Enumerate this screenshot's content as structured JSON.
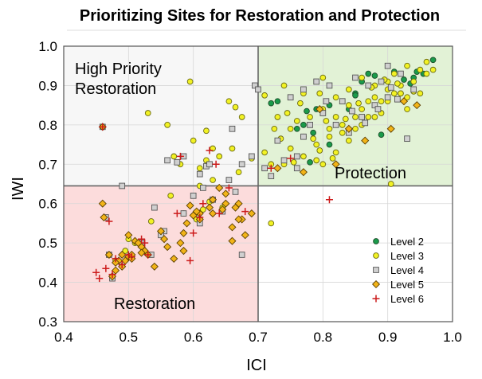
{
  "chart_data": {
    "type": "scatter",
    "title": "Prioritizing Sites for Restoration and Protection",
    "xlabel": "ICI",
    "ylabel": "IWI",
    "xlim": [
      0.4,
      1.0
    ],
    "ylim": [
      0.3,
      1.0
    ],
    "xticks": [
      "0.4",
      "0.5",
      "0.6",
      "0.7",
      "0.8",
      "0.9",
      "1.0"
    ],
    "yticks": [
      "0.3",
      "0.4",
      "0.5",
      "0.6",
      "0.7",
      "0.8",
      "0.9",
      "1.0"
    ],
    "grid": true,
    "legend_position": "bottom-right",
    "thresholds": {
      "x": 0.7,
      "y": 0.645
    },
    "regions": [
      {
        "label_lines": [
          "High Priority",
          "Restoration"
        ],
        "color": "#f7f7f7"
      },
      {
        "label_lines": [
          "Protection"
        ],
        "color": "#e2f2d6"
      },
      {
        "label_lines": [
          "Restoration"
        ],
        "color": "#fcdcdc"
      }
    ],
    "series": [
      {
        "name": "Level 2",
        "marker": "circle",
        "fill": "#1a9a4a",
        "stroke": "#1d4d2a",
        "points": [
          [
            0.97,
            0.965
          ],
          [
            0.955,
            0.93
          ],
          [
            0.94,
            0.92
          ],
          [
            0.935,
            0.905
          ],
          [
            0.925,
            0.915
          ],
          [
            0.945,
            0.935
          ],
          [
            0.91,
            0.935
          ],
          [
            0.88,
            0.925
          ],
          [
            0.87,
            0.93
          ],
          [
            0.86,
            0.91
          ],
          [
            0.85,
            0.88
          ],
          [
            0.81,
            0.85
          ],
          [
            0.79,
            0.84
          ],
          [
            0.775,
            0.835
          ],
          [
            0.77,
            0.8
          ],
          [
            0.76,
            0.79
          ],
          [
            0.785,
            0.78
          ],
          [
            0.73,
            0.86
          ],
          [
            0.72,
            0.855
          ],
          [
            0.81,
            0.75
          ],
          [
            0.78,
            0.705
          ],
          [
            0.85,
            0.875
          ],
          [
            0.84,
            0.84
          ],
          [
            0.89,
            0.775
          ]
        ]
      },
      {
        "name": "Level 3",
        "marker": "circle",
        "fill": "#f2f224",
        "stroke": "#6a6a12",
        "points": [
          [
            0.53,
            0.83
          ],
          [
            0.56,
            0.8
          ],
          [
            0.595,
            0.91
          ],
          [
            0.6,
            0.76
          ],
          [
            0.62,
            0.785
          ],
          [
            0.655,
            0.86
          ],
          [
            0.665,
            0.845
          ],
          [
            0.675,
            0.82
          ],
          [
            0.63,
            0.74
          ],
          [
            0.64,
            0.72
          ],
          [
            0.62,
            0.71
          ],
          [
            0.66,
            0.74
          ],
          [
            0.61,
            0.69
          ],
          [
            0.58,
            0.7
          ],
          [
            0.57,
            0.72
          ],
          [
            0.63,
            0.66
          ],
          [
            0.61,
            0.645
          ],
          [
            0.67,
            0.68
          ],
          [
            0.69,
            0.715
          ],
          [
            0.72,
            0.55
          ],
          [
            0.905,
            0.65
          ],
          [
            0.71,
            0.875
          ],
          [
            0.74,
            0.9
          ],
          [
            0.77,
            0.88
          ],
          [
            0.8,
            0.92
          ],
          [
            0.82,
            0.87
          ],
          [
            0.84,
            0.89
          ],
          [
            0.86,
            0.92
          ],
          [
            0.88,
            0.9
          ],
          [
            0.9,
            0.91
          ],
          [
            0.92,
            0.88
          ],
          [
            0.93,
            0.87
          ],
          [
            0.95,
            0.94
          ],
          [
            0.96,
            0.96
          ],
          [
            0.89,
            0.86
          ],
          [
            0.87,
            0.82
          ],
          [
            0.85,
            0.79
          ],
          [
            0.83,
            0.8
          ],
          [
            0.81,
            0.77
          ],
          [
            0.79,
            0.75
          ],
          [
            0.77,
            0.72
          ],
          [
            0.75,
            0.74
          ],
          [
            0.74,
            0.7
          ],
          [
            0.72,
            0.7
          ],
          [
            0.71,
            0.73
          ],
          [
            0.76,
            0.81
          ],
          [
            0.78,
            0.82
          ],
          [
            0.8,
            0.84
          ],
          [
            0.82,
            0.82
          ],
          [
            0.84,
            0.85
          ],
          [
            0.86,
            0.84
          ],
          [
            0.88,
            0.87
          ],
          [
            0.9,
            0.89
          ],
          [
            0.92,
            0.9
          ],
          [
            0.94,
            0.91
          ],
          [
            0.93,
            0.84
          ],
          [
            0.91,
            0.88
          ],
          [
            0.89,
            0.83
          ],
          [
            0.87,
            0.86
          ],
          [
            0.85,
            0.82
          ],
          [
            0.83,
            0.78
          ],
          [
            0.81,
            0.79
          ],
          [
            0.79,
            0.71
          ],
          [
            0.77,
            0.77
          ],
          [
            0.75,
            0.79
          ],
          [
            0.73,
            0.82
          ],
          [
            0.8,
            0.7
          ],
          [
            0.82,
            0.73
          ],
          [
            0.84,
            0.76
          ],
          [
            0.86,
            0.8
          ],
          [
            0.88,
            0.82
          ],
          [
            0.9,
            0.86
          ],
          [
            0.92,
            0.88
          ],
          [
            0.94,
            0.885
          ],
          [
            0.96,
            0.93
          ],
          [
            0.97,
            0.94
          ],
          [
            0.93,
            0.95
          ],
          [
            0.91,
            0.93
          ],
          [
            0.95,
            0.88
          ],
          [
            0.785,
            0.765
          ],
          [
            0.805,
            0.81
          ],
          [
            0.835,
            0.815
          ],
          [
            0.765,
            0.855
          ],
          [
            0.745,
            0.83
          ],
          [
            0.725,
            0.79
          ],
          [
            0.735,
            0.765
          ],
          [
            0.755,
            0.705
          ],
          [
            0.795,
            0.735
          ],
          [
            0.815,
            0.715
          ],
          [
            0.795,
            0.88
          ],
          [
            0.855,
            0.855
          ],
          [
            0.875,
            0.895
          ],
          [
            0.895,
            0.915
          ],
          [
            0.915,
            0.905
          ],
          [
            0.565,
            0.62
          ],
          [
            0.615,
            0.585
          ],
          [
            0.585,
            0.575
          ],
          [
            0.605,
            0.56
          ],
          [
            0.625,
            0.605
          ],
          [
            0.645,
            0.59
          ],
          [
            0.535,
            0.555
          ],
          [
            0.5,
            0.51
          ],
          [
            0.51,
            0.5
          ],
          [
            0.48,
            0.455
          ],
          [
            0.495,
            0.48
          ]
        ]
      },
      {
        "name": "Level 4",
        "marker": "square",
        "fill": "#d0d0d0",
        "stroke": "#555555",
        "points": [
          [
            0.46,
            0.795
          ],
          [
            0.49,
            0.645
          ],
          [
            0.465,
            0.565
          ],
          [
            0.47,
            0.47
          ],
          [
            0.535,
            0.47
          ],
          [
            0.555,
            0.53
          ],
          [
            0.475,
            0.41
          ],
          [
            0.52,
            0.5
          ],
          [
            0.54,
            0.59
          ],
          [
            0.55,
            0.52
          ],
          [
            0.56,
            0.71
          ],
          [
            0.575,
            0.705
          ],
          [
            0.585,
            0.72
          ],
          [
            0.6,
            0.62
          ],
          [
            0.615,
            0.64
          ],
          [
            0.63,
            0.61
          ],
          [
            0.645,
            0.58
          ],
          [
            0.655,
            0.66
          ],
          [
            0.665,
            0.63
          ],
          [
            0.675,
            0.7
          ],
          [
            0.69,
            0.72
          ],
          [
            0.695,
            0.9
          ],
          [
            0.7,
            0.89
          ],
          [
            0.61,
            0.675
          ],
          [
            0.62,
            0.695
          ],
          [
            0.625,
            0.7
          ],
          [
            0.66,
            0.79
          ],
          [
            0.675,
            0.47
          ],
          [
            0.74,
            0.71
          ],
          [
            0.76,
            0.72
          ],
          [
            0.77,
            0.77
          ],
          [
            0.78,
            0.8
          ],
          [
            0.8,
            0.83
          ],
          [
            0.82,
            0.8
          ],
          [
            0.84,
            0.78
          ],
          [
            0.86,
            0.82
          ],
          [
            0.88,
            0.85
          ],
          [
            0.9,
            0.87
          ],
          [
            0.92,
            0.93
          ],
          [
            0.94,
            0.89
          ],
          [
            0.93,
            0.765
          ],
          [
            0.9,
            0.95
          ],
          [
            0.89,
            0.91
          ],
          [
            0.87,
            0.9
          ],
          [
            0.85,
            0.92
          ],
          [
            0.83,
            0.86
          ],
          [
            0.81,
            0.9
          ],
          [
            0.79,
            0.91
          ],
          [
            0.77,
            0.89
          ],
          [
            0.75,
            0.87
          ],
          [
            0.73,
            0.76
          ],
          [
            0.72,
            0.67
          ],
          [
            0.71,
            0.69
          ],
          [
            0.76,
            0.69
          ],
          [
            0.805,
            0.86
          ],
          [
            0.845,
            0.835
          ],
          [
            0.865,
            0.805
          ],
          [
            0.885,
            0.84
          ],
          [
            0.905,
            0.895
          ],
          [
            0.915,
            0.865
          ],
          [
            0.61,
            0.55
          ],
          [
            0.585,
            0.575
          ]
        ]
      },
      {
        "name": "Level 5",
        "marker": "diamond",
        "fill": "#f2b418",
        "stroke": "#5a3e00",
        "points": [
          [
            0.46,
            0.795
          ],
          [
            0.462,
            0.565
          ],
          [
            0.47,
            0.47
          ],
          [
            0.49,
            0.47
          ],
          [
            0.5,
            0.465
          ],
          [
            0.485,
            0.455
          ],
          [
            0.48,
            0.45
          ],
          [
            0.505,
            0.46
          ],
          [
            0.52,
            0.49
          ],
          [
            0.525,
            0.48
          ],
          [
            0.53,
            0.47
          ],
          [
            0.54,
            0.44
          ],
          [
            0.55,
            0.53
          ],
          [
            0.555,
            0.51
          ],
          [
            0.56,
            0.49
          ],
          [
            0.57,
            0.46
          ],
          [
            0.58,
            0.5
          ],
          [
            0.585,
            0.48
          ],
          [
            0.6,
            0.57
          ],
          [
            0.61,
            0.575
          ],
          [
            0.625,
            0.59
          ],
          [
            0.65,
            0.6
          ],
          [
            0.665,
            0.59
          ],
          [
            0.675,
            0.56
          ],
          [
            0.66,
            0.54
          ],
          [
            0.68,
            0.52
          ],
          [
            0.69,
            0.575
          ],
          [
            0.65,
            0.625
          ],
          [
            0.64,
            0.64
          ],
          [
            0.63,
            0.61
          ],
          [
            0.595,
            0.595
          ],
          [
            0.605,
            0.58
          ],
          [
            0.46,
            0.6
          ],
          [
            0.5,
            0.52
          ],
          [
            0.51,
            0.505
          ],
          [
            0.66,
            0.505
          ],
          [
            0.48,
            0.43
          ],
          [
            0.475,
            0.415
          ],
          [
            0.59,
            0.55
          ],
          [
            0.585,
            0.525
          ],
          [
            0.73,
            0.69
          ],
          [
            0.77,
            0.68
          ],
          [
            0.795,
            0.84
          ],
          [
            0.82,
            0.7
          ],
          [
            0.84,
            0.79
          ],
          [
            0.865,
            0.76
          ],
          [
            0.905,
            0.79
          ],
          [
            0.925,
            0.86
          ],
          [
            0.945,
            0.85
          ],
          [
            0.49,
            0.44
          ],
          [
            0.505,
            0.47
          ],
          [
            0.515,
            0.5
          ],
          [
            0.495,
            0.455
          ],
          [
            0.52,
            0.475
          ],
          [
            0.61,
            0.56
          ],
          [
            0.63,
            0.575
          ],
          [
            0.645,
            0.585
          ],
          [
            0.67,
            0.56
          ],
          [
            0.67,
            0.6
          ]
        ]
      },
      {
        "name": "Level 6",
        "marker": "plus",
        "fill": "#cc1a1a",
        "stroke": "#cc1a1a",
        "points": [
          [
            0.46,
            0.795
          ],
          [
            0.45,
            0.425
          ],
          [
            0.455,
            0.41
          ],
          [
            0.465,
            0.435
          ],
          [
            0.475,
            0.42
          ],
          [
            0.48,
            0.46
          ],
          [
            0.49,
            0.445
          ],
          [
            0.505,
            0.465
          ],
          [
            0.52,
            0.51
          ],
          [
            0.525,
            0.5
          ],
          [
            0.53,
            0.47
          ],
          [
            0.58,
            0.72
          ],
          [
            0.595,
            0.455
          ],
          [
            0.6,
            0.525
          ],
          [
            0.615,
            0.6
          ],
          [
            0.625,
            0.735
          ],
          [
            0.64,
            0.575
          ],
          [
            0.68,
            0.58
          ],
          [
            0.72,
            0.69
          ],
          [
            0.75,
            0.715
          ],
          [
            0.81,
            0.61
          ],
          [
            0.575,
            0.575
          ],
          [
            0.61,
            0.565
          ],
          [
            0.635,
            0.7
          ],
          [
            0.655,
            0.64
          ],
          [
            0.47,
            0.555
          ],
          [
            0.5,
            0.47
          ]
        ]
      }
    ]
  }
}
